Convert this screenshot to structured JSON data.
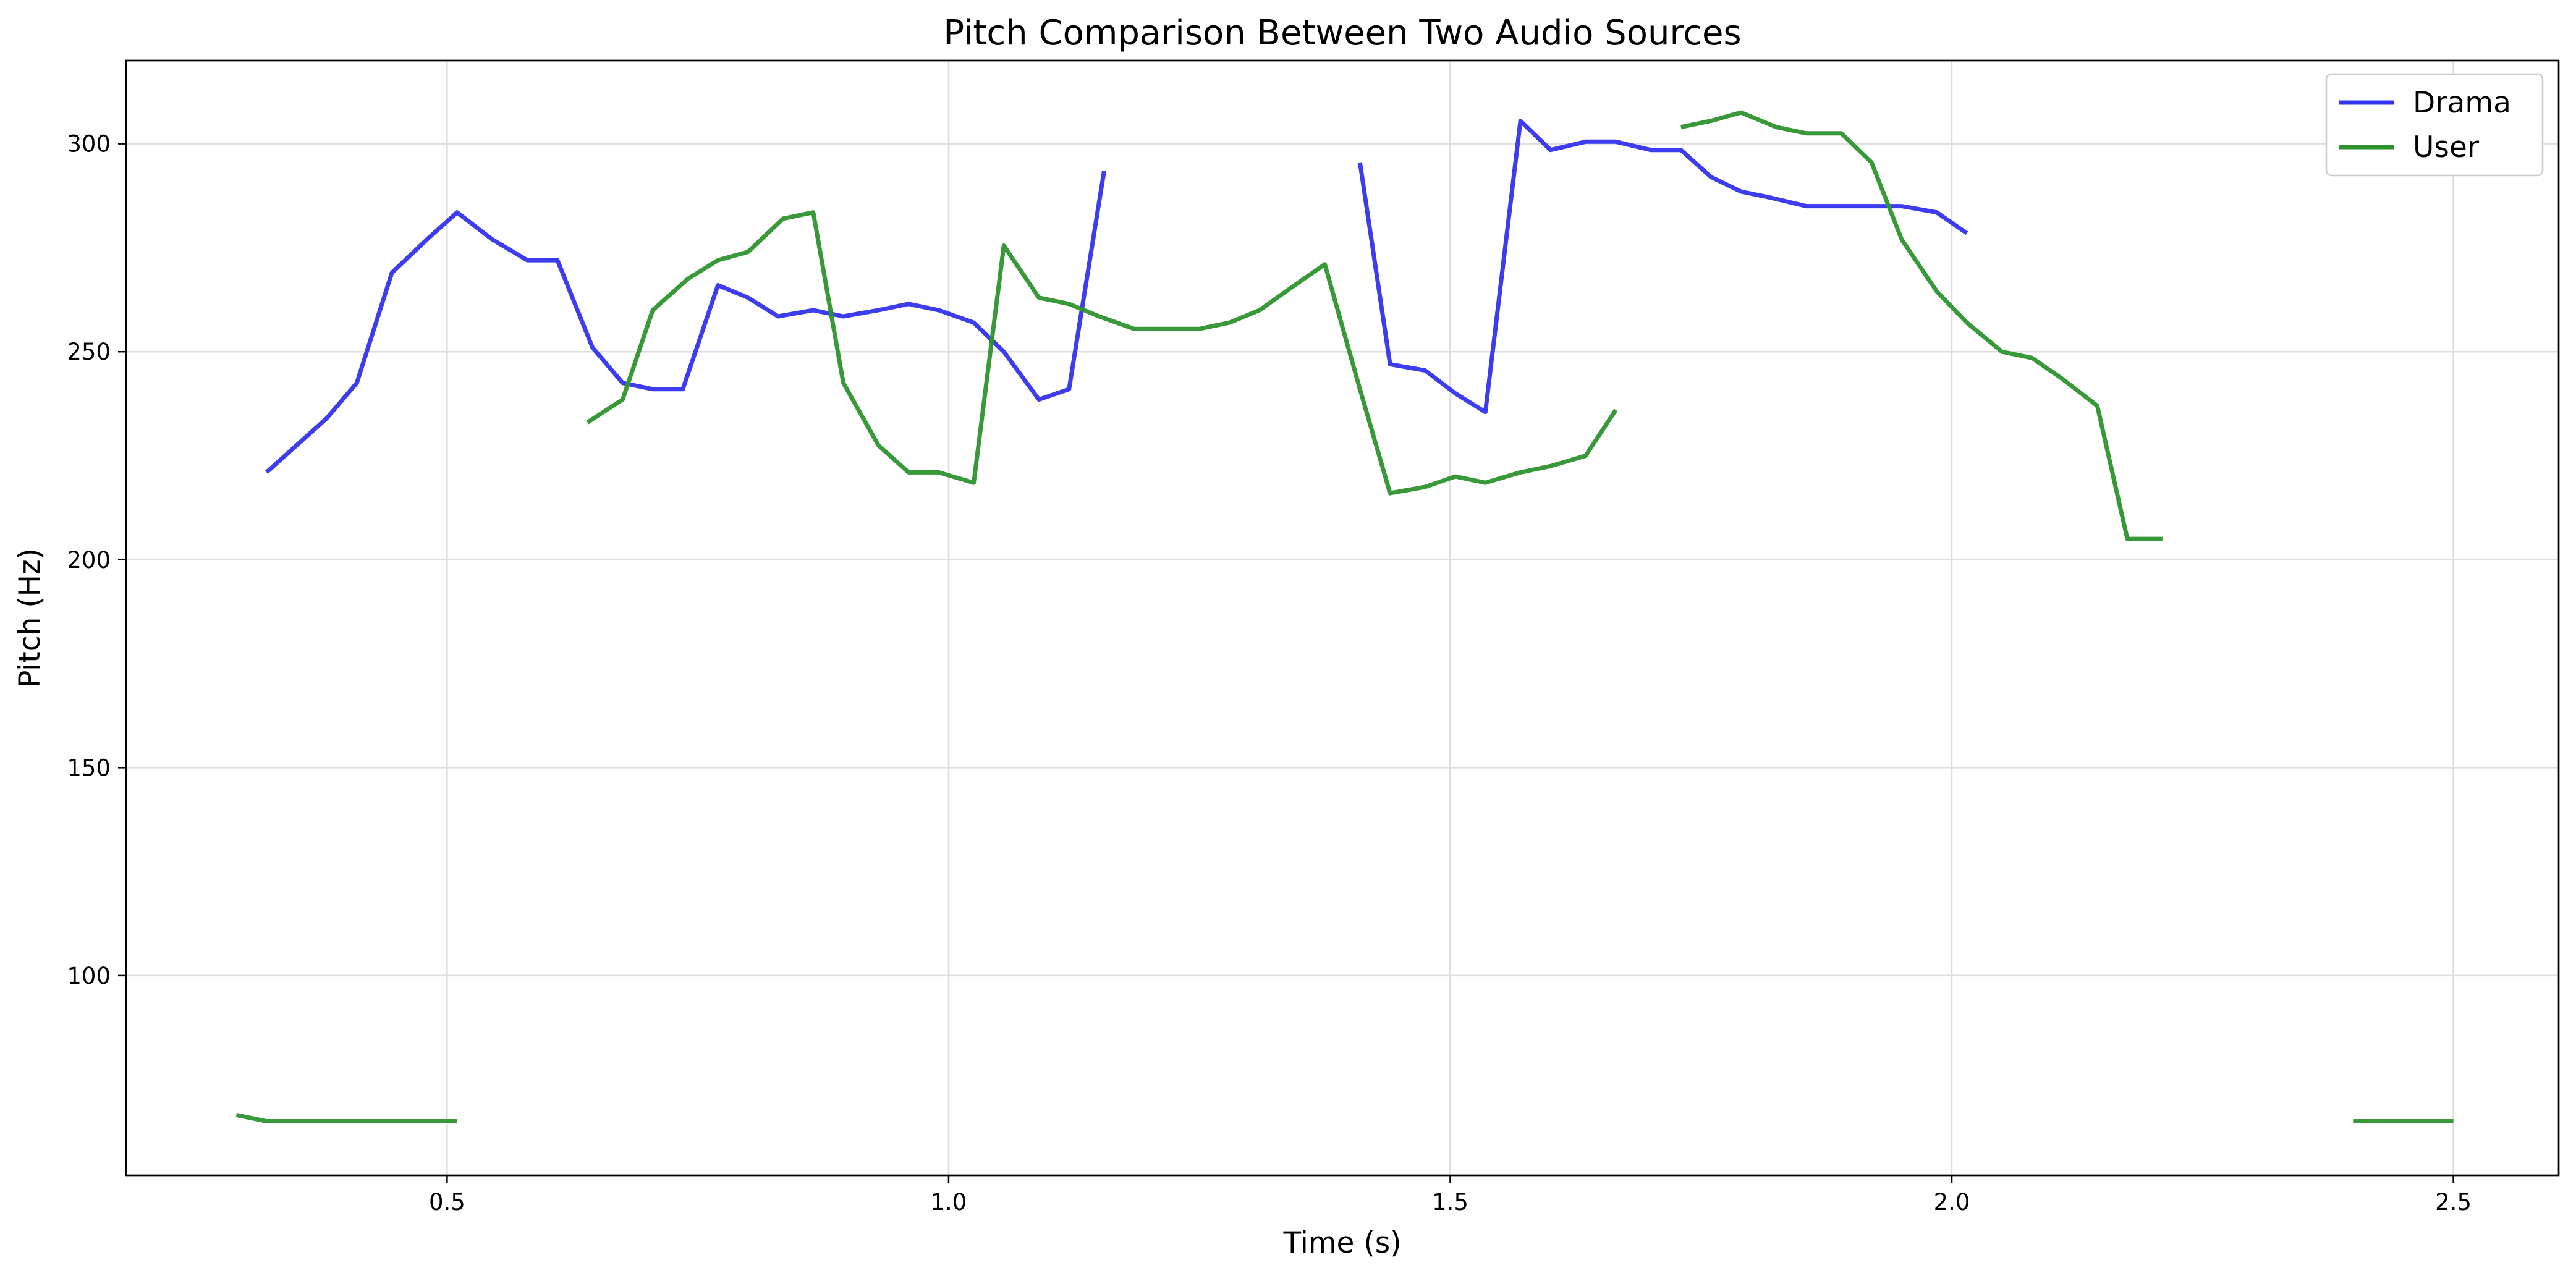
{
  "chart_data": {
    "type": "line",
    "title": "Pitch Comparison Between Two Audio Sources",
    "xlabel": "Time (s)",
    "ylabel": "Pitch (Hz)",
    "xlim": [
      0.18,
      2.605
    ],
    "ylim": [
      52,
      320
    ],
    "xticks": [
      0.5,
      1.0,
      1.5,
      2.0,
      2.5
    ],
    "xtick_labels": [
      "0.5",
      "1.0",
      "1.5",
      "2.0",
      "2.5"
    ],
    "yticks": [
      100,
      150,
      200,
      250,
      300
    ],
    "ytick_labels": [
      "100",
      "150",
      "200",
      "250",
      "300"
    ],
    "grid": true,
    "legend_position": "top-right",
    "series": [
      {
        "name": "Drama",
        "color": "#3333ee",
        "segments": [
          [
            [
              0.32,
              221
            ],
            [
              0.35,
              227.5
            ],
            [
              0.38,
              234
            ],
            [
              0.41,
              242.5
            ],
            [
              0.445,
              269
            ],
            [
              0.48,
              277
            ],
            [
              0.51,
              283.5
            ],
            [
              0.545,
              277
            ],
            [
              0.58,
              272
            ],
            [
              0.61,
              272
            ],
            [
              0.645,
              251
            ],
            [
              0.675,
              242.5
            ],
            [
              0.705,
              241
            ],
            [
              0.735,
              241
            ],
            [
              0.77,
              266
            ],
            [
              0.8,
              263
            ],
            [
              0.83,
              258.5
            ],
            [
              0.865,
              260
            ],
            [
              0.895,
              258.5
            ],
            [
              0.93,
              260
            ],
            [
              0.96,
              261.5
            ],
            [
              0.99,
              260
            ],
            [
              1.025,
              257
            ],
            [
              1.055,
              250
            ],
            [
              1.09,
              238.5
            ],
            [
              1.12,
              241
            ],
            [
              1.155,
              293.5
            ]
          ],
          [
            [
              1.41,
              295.5
            ],
            [
              1.44,
              247
            ],
            [
              1.475,
              245.5
            ],
            [
              1.505,
              240
            ],
            [
              1.535,
              235.5
            ],
            [
              1.57,
              305.5
            ],
            [
              1.6,
              298.5
            ],
            [
              1.635,
              300.5
            ],
            [
              1.665,
              300.5
            ],
            [
              1.7,
              298.5
            ],
            [
              1.73,
              298.5
            ],
            [
              1.76,
              292
            ],
            [
              1.79,
              288.5
            ],
            [
              1.82,
              287
            ],
            [
              1.855,
              285
            ],
            [
              1.885,
              285
            ],
            [
              1.92,
              285
            ],
            [
              1.95,
              285
            ],
            [
              1.985,
              283.5
            ],
            [
              2.015,
              278.5
            ]
          ]
        ]
      },
      {
        "name": "User",
        "color": "#2e922e",
        "segments": [
          [
            [
              0.29,
              66.5
            ],
            [
              0.32,
              65
            ],
            [
              0.35,
              65
            ],
            [
              0.38,
              65
            ],
            [
              0.51,
              65
            ]
          ],
          [
            [
              0.64,
              233
            ],
            [
              0.675,
              238.5
            ],
            [
              0.705,
              260
            ],
            [
              0.74,
              267.5
            ],
            [
              0.77,
              272
            ],
            [
              0.8,
              274
            ],
            [
              0.835,
              282
            ],
            [
              0.865,
              283.5
            ],
            [
              0.895,
              242.5
            ],
            [
              0.93,
              227.5
            ],
            [
              0.96,
              221
            ],
            [
              0.99,
              221
            ],
            [
              1.025,
              218.5
            ],
            [
              1.055,
              275.5
            ],
            [
              1.09,
              263
            ],
            [
              1.12,
              261.5
            ],
            [
              1.15,
              258.5
            ],
            [
              1.185,
              255.5
            ],
            [
              1.215,
              255.5
            ],
            [
              1.25,
              255.5
            ],
            [
              1.28,
              257
            ],
            [
              1.31,
              260
            ],
            [
              1.345,
              266
            ],
            [
              1.375,
              271
            ],
            [
              1.41,
              241
            ],
            [
              1.44,
              216
            ],
            [
              1.475,
              217.5
            ],
            [
              1.505,
              220
            ],
            [
              1.535,
              218.5
            ],
            [
              1.57,
              221
            ],
            [
              1.6,
              222.5
            ],
            [
              1.635,
              225
            ],
            [
              1.665,
              236
            ]
          ],
          [
            [
              1.73,
              304
            ],
            [
              1.76,
              305.5
            ],
            [
              1.79,
              307.5
            ],
            [
              1.825,
              304
            ],
            [
              1.855,
              302.5
            ],
            [
              1.89,
              302.5
            ],
            [
              1.92,
              295.5
            ],
            [
              1.95,
              277
            ],
            [
              1.985,
              264.5
            ],
            [
              2.015,
              257
            ],
            [
              2.05,
              250
            ],
            [
              2.08,
              248.5
            ],
            [
              2.11,
              243.5
            ],
            [
              2.145,
              237
            ],
            [
              2.175,
              205
            ],
            [
              2.21,
              205
            ]
          ],
          [
            [
              2.4,
              65
            ],
            [
              2.5,
              65
            ]
          ]
        ]
      }
    ]
  }
}
